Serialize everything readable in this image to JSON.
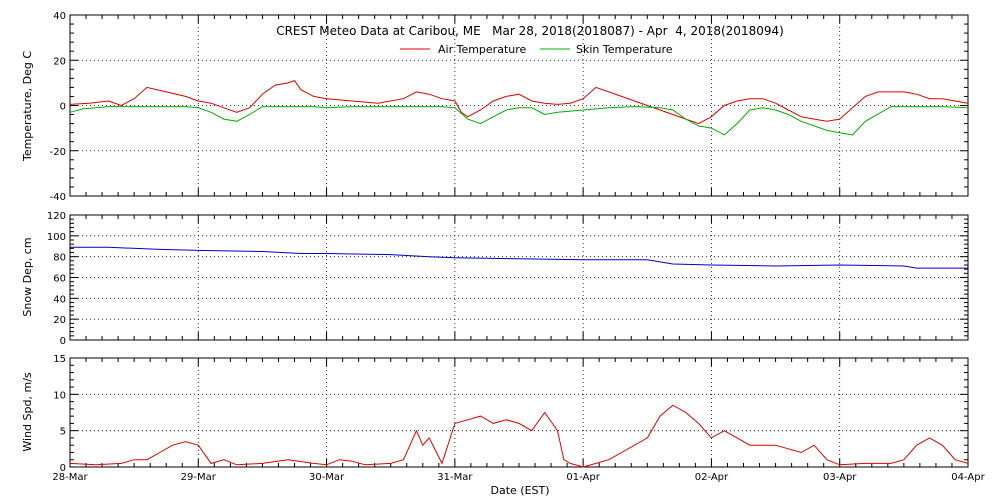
{
  "page": {
    "title": "CREST Meteo Data at Caribou, ME   Mar 28, 2018(2018087) - Apr  4, 2018(2018094)"
  },
  "chart_data": [
    {
      "type": "line",
      "title": "CREST Meteo Data at Caribou, ME   Mar 28, 2018(2018087) - Apr  4, 2018(2018094)",
      "xlabel": "",
      "ylabel": "Temperature, Deg C",
      "xlim": [
        0,
        7
      ],
      "ylim": [
        -40,
        40
      ],
      "yticks": [
        -40,
        -20,
        0,
        20,
        40
      ],
      "grid": true,
      "legend_position": "top-center",
      "series": [
        {
          "name": "Air Temperature",
          "color": "#e00000",
          "x": [
            0,
            0.15,
            0.3,
            0.4,
            0.5,
            0.6,
            0.75,
            0.9,
            1.0,
            1.1,
            1.2,
            1.3,
            1.4,
            1.5,
            1.6,
            1.7,
            1.75,
            1.8,
            1.9,
            2.0,
            2.2,
            2.4,
            2.6,
            2.7,
            2.8,
            2.9,
            3.0,
            3.05,
            3.1,
            3.2,
            3.3,
            3.4,
            3.5,
            3.6,
            3.7,
            3.8,
            3.9,
            4.0,
            4.1,
            4.2,
            4.3,
            4.4,
            4.5,
            4.6,
            4.7,
            4.8,
            4.9,
            5.0,
            5.1,
            5.2,
            5.3,
            5.4,
            5.5,
            5.6,
            5.7,
            5.8,
            5.9,
            6.0,
            6.1,
            6.2,
            6.3,
            6.4,
            6.5,
            6.6,
            6.7,
            6.8,
            6.9,
            7.0
          ],
          "y": [
            0.5,
            1,
            2,
            0,
            3,
            8,
            6,
            4,
            2,
            1,
            -1,
            -3,
            -1,
            5,
            9,
            10,
            11,
            7,
            4,
            3,
            2,
            1,
            3,
            6,
            5,
            3,
            2,
            -3,
            -5,
            -2,
            2,
            4,
            5,
            2,
            1,
            0.5,
            1,
            3,
            8,
            6,
            4,
            2,
            0,
            -2,
            -4,
            -6,
            -8,
            -5,
            0,
            2,
            3,
            3,
            1,
            -2,
            -5,
            -6,
            -7,
            -6,
            -1,
            4,
            6,
            6,
            6,
            5,
            3,
            3,
            2,
            1
          ]
        },
        {
          "name": "Skin Temperature",
          "color": "#00b000",
          "x": [
            0,
            0.1,
            0.2,
            0.3,
            0.5,
            0.7,
            0.9,
            1.0,
            1.1,
            1.2,
            1.3,
            1.4,
            1.5,
            1.7,
            1.9,
            2.0,
            2.2,
            2.5,
            2.7,
            2.9,
            3.0,
            3.1,
            3.2,
            3.3,
            3.4,
            3.5,
            3.6,
            3.7,
            3.8,
            4.0,
            4.2,
            4.4,
            4.6,
            4.7,
            4.8,
            4.9,
            5.0,
            5.1,
            5.2,
            5.3,
            5.4,
            5.5,
            5.6,
            5.7,
            5.8,
            5.9,
            6.0,
            6.1,
            6.2,
            6.4,
            6.6,
            6.8,
            7.0
          ],
          "y": [
            -3,
            -1.5,
            -1,
            -0.5,
            -0.5,
            -0.5,
            -0.5,
            -1,
            -3,
            -6,
            -7,
            -4,
            -0.5,
            -0.5,
            -0.5,
            -1,
            -0.5,
            -0.5,
            -0.5,
            -0.5,
            -1,
            -6,
            -8,
            -5,
            -2,
            -1,
            -1,
            -4,
            -3,
            -2,
            -1,
            -0.5,
            -1,
            -2,
            -6,
            -9,
            -10,
            -13,
            -8,
            -2,
            -1,
            -2,
            -4,
            -7,
            -9,
            -11,
            -12,
            -13,
            -7,
            -0.5,
            -0.5,
            -0.5,
            -1
          ]
        }
      ]
    },
    {
      "type": "line",
      "title": "",
      "xlabel": "",
      "ylabel": "Snow Dep, cm",
      "xlim": [
        0,
        7
      ],
      "ylim": [
        0,
        120
      ],
      "yticks": [
        0,
        20,
        40,
        60,
        80,
        100,
        120
      ],
      "grid": true,
      "series": [
        {
          "name": "",
          "color": "#0000c8",
          "x": [
            0,
            0.3,
            0.7,
            1.0,
            1.5,
            1.8,
            2.0,
            2.5,
            2.8,
            3.0,
            3.5,
            4.0,
            4.3,
            4.5,
            4.7,
            5.0,
            5.5,
            6.0,
            6.5,
            6.6,
            7.0
          ],
          "y": [
            89,
            89,
            87,
            86,
            85,
            83,
            83,
            82,
            80,
            79,
            78,
            77,
            77,
            77,
            73,
            72,
            71,
            72,
            71,
            69,
            69
          ]
        }
      ]
    },
    {
      "type": "line",
      "title": "",
      "xlabel": "Date (EST)",
      "ylabel": "Wind Spd, m/s",
      "xlim": [
        0,
        7
      ],
      "ylim": [
        0,
        15
      ],
      "yticks": [
        0,
        5,
        10,
        15
      ],
      "xticks": [
        0,
        1,
        2,
        3,
        4,
        5,
        6,
        7
      ],
      "xtick_labels": [
        "28-Mar",
        "29-Mar",
        "30-Mar",
        "31-Mar",
        "01-Apr",
        "02-Apr",
        "03-Apr",
        "04-Apr"
      ],
      "grid": true,
      "series": [
        {
          "name": "",
          "color": "#e00000",
          "x": [
            0,
            0.2,
            0.4,
            0.5,
            0.6,
            0.7,
            0.8,
            0.9,
            1.0,
            1.1,
            1.2,
            1.3,
            1.5,
            1.7,
            1.9,
            2.0,
            2.1,
            2.2,
            2.3,
            2.5,
            2.6,
            2.7,
            2.75,
            2.8,
            2.9,
            3.0,
            3.1,
            3.2,
            3.3,
            3.4,
            3.5,
            3.6,
            3.7,
            3.8,
            3.85,
            3.9,
            4.0,
            4.1,
            4.2,
            4.3,
            4.4,
            4.5,
            4.6,
            4.7,
            4.8,
            4.9,
            5.0,
            5.1,
            5.3,
            5.5,
            5.7,
            5.8,
            5.9,
            6.0,
            6.2,
            6.4,
            6.5,
            6.6,
            6.7,
            6.8,
            6.9,
            7.0
          ],
          "y": [
            0.5,
            0.3,
            0.5,
            1,
            1,
            2,
            3,
            3.5,
            3,
            0.5,
            1,
            0.3,
            0.5,
            1,
            0.5,
            0.3,
            1,
            0.8,
            0.3,
            0.5,
            1,
            5,
            3,
            4,
            0.5,
            6,
            6.5,
            7,
            6,
            6.5,
            6,
            5,
            7.5,
            5,
            1,
            0.5,
            0,
            0.5,
            1,
            2,
            3,
            4,
            7,
            8.5,
            7.5,
            6,
            4,
            5,
            3,
            3,
            2,
            3,
            1,
            0.3,
            0.5,
            0.5,
            1,
            3,
            4,
            3,
            1,
            0.5
          ]
        }
      ]
    }
  ]
}
